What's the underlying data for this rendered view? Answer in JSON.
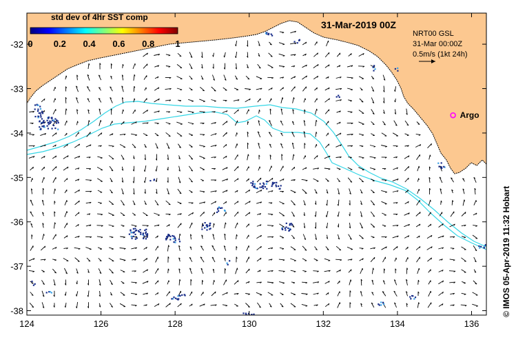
{
  "title": "31-Mar-2019 00Z",
  "colorbar": {
    "title": "std dev of 4hr SST comp",
    "labels": [
      "0",
      "0.2",
      "0.4",
      "0.6",
      "0.8",
      "1"
    ],
    "min": 0,
    "max": 1,
    "colors": [
      "#00007f",
      "#0000ff",
      "#007fff",
      "#00ffff",
      "#7fff7f",
      "#ffff00",
      "#ff7f00",
      "#ff0000",
      "#7f0000"
    ]
  },
  "legend": {
    "line1": "NRT00 GSL",
    "line2": "31-Mar 00:00Z",
    "line3": "0.5m/s (1kt 24h)"
  },
  "argo": {
    "label": "Argo",
    "lon": 135.5,
    "lat": -33.6,
    "color": "#ff00ff"
  },
  "credit": "© IMOS 05-Apr-2019 11:32 Hobart",
  "axes": {
    "x_ticks": [
      "124",
      "126",
      "128",
      "130",
      "132",
      "134",
      "136"
    ],
    "x_values": [
      124,
      126,
      128,
      130,
      132,
      134,
      136
    ],
    "y_ticks": [
      "-32",
      "-33",
      "-34",
      "-35",
      "-36",
      "-37",
      "-38"
    ],
    "y_values": [
      -32,
      -33,
      -34,
      -35,
      -36,
      -37,
      -38
    ],
    "lon_range": [
      124,
      136.4
    ],
    "lat_range": [
      -31.3,
      -38.1
    ]
  },
  "colors": {
    "land": "#fcc890",
    "contour": "#33d6e6",
    "pixel": "#1a2e8a"
  }
}
